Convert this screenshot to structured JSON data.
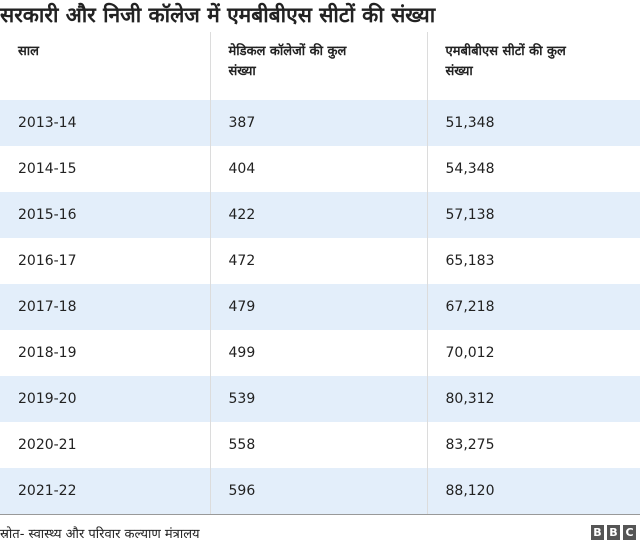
{
  "title": "सरकारी और निजी कॉलेज में एमबीबीएस सीटों की संख्या",
  "table": {
    "columns": [
      "साल",
      "मेडिकल कॉलेजों की कुल संख्या",
      "एमबीबीएस सीटों की कुल संख्या"
    ],
    "rows": [
      [
        "2013-14",
        "387",
        "51,348"
      ],
      [
        "2014-15",
        "404",
        "54,348"
      ],
      [
        "2015-16",
        "422",
        "57,138"
      ],
      [
        "2016-17",
        "472",
        "65,183"
      ],
      [
        "2017-18",
        "479",
        "67,218"
      ],
      [
        "2018-19",
        "499",
        "70,012"
      ],
      [
        "2019-20",
        "539",
        "80,312"
      ],
      [
        "2020-21",
        "558",
        "83,275"
      ],
      [
        "2021-22",
        "596",
        "88,120"
      ]
    ]
  },
  "footer": {
    "source": "स्रोत- स्वास्थ्य और परिवार कल्याण मंत्रालय",
    "logo": [
      "B",
      "B",
      "C"
    ]
  }
}
